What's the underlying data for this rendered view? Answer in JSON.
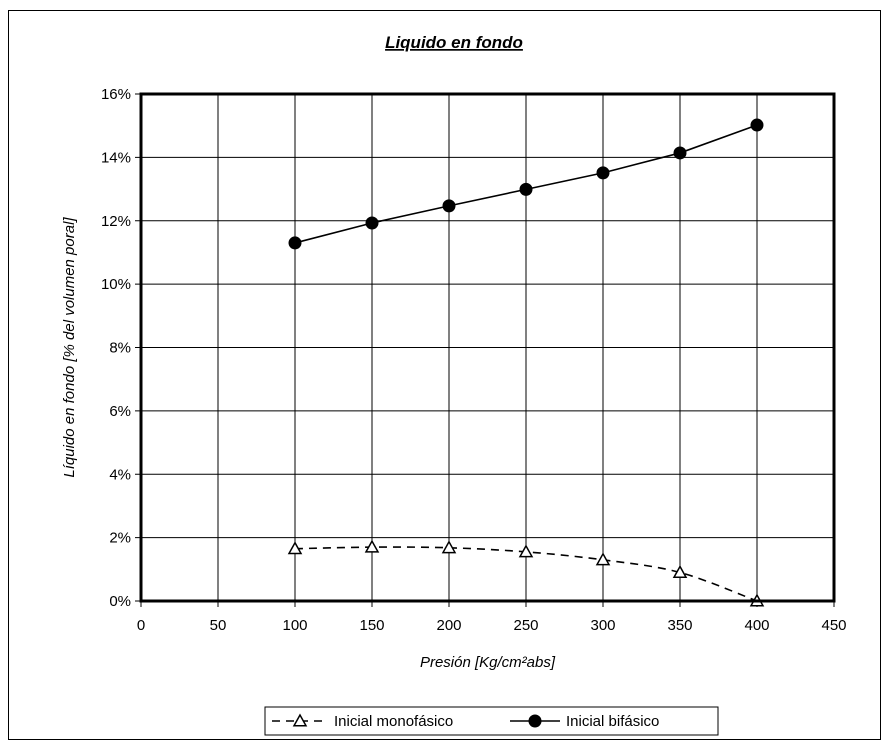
{
  "chart_data": {
    "type": "line",
    "title": "Liquido en fondo",
    "xlabel": "Presión [Kg/cm²abs]",
    "ylabel": "Líquido en fondo [% del volumen poral]",
    "xlim": [
      0,
      450
    ],
    "ylim": [
      0,
      16
    ],
    "xticks": [
      0,
      50,
      100,
      150,
      200,
      250,
      300,
      350,
      400,
      450
    ],
    "yticks": [
      0,
      2,
      4,
      6,
      8,
      10,
      12,
      14,
      16
    ],
    "ytick_labels": [
      "0%",
      "2%",
      "4%",
      "6%",
      "8%",
      "10%",
      "12%",
      "14%",
      "16%"
    ],
    "grid": true,
    "legend_position": "bottom",
    "series": [
      {
        "name": "Inicial monofásico",
        "marker": "triangle-open",
        "line": "dashed",
        "color": "#000000",
        "x": [
          100,
          150,
          200,
          250,
          300,
          350,
          400
        ],
        "y": [
          1.65,
          1.7,
          1.68,
          1.55,
          1.3,
          0.9,
          0.0
        ]
      },
      {
        "name": "Inicial bifásico",
        "marker": "circle-filled",
        "line": "solid",
        "color": "#000000",
        "x": [
          100,
          150,
          200,
          250,
          300,
          350,
          400
        ],
        "y": [
          11.3,
          11.93,
          12.47,
          12.99,
          13.51,
          14.14,
          15.02
        ]
      }
    ]
  }
}
